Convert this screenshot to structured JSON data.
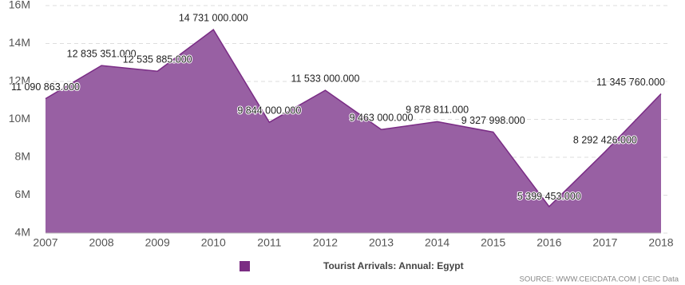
{
  "chart_data": {
    "type": "area",
    "categories": [
      "2007",
      "2008",
      "2009",
      "2010",
      "2011",
      "2012",
      "2013",
      "2014",
      "2015",
      "2016",
      "2017",
      "2018"
    ],
    "series": [
      {
        "name": "Tourist Arrivals: Annual: Egypt",
        "color": "#9860a3",
        "line_color": "#7a2c85",
        "legend_color": "#7b2d83",
        "values": [
          11090863,
          12835351,
          12535885,
          14731000,
          9844000,
          11533000,
          9463000,
          9878811,
          9327998,
          5399453,
          8292426,
          11345760
        ],
        "value_labels": [
          "11 090 863.000",
          "12 835 351.000",
          "12 535 885.000",
          "14 731 000.000",
          "9 844 000.000",
          "11 533 000.000",
          "9 463 000.000",
          "9 878 811.000",
          "9 327 998.000",
          "5 399 453.000",
          "8 292 426.000",
          "11 345 760.000"
        ]
      }
    ],
    "ylim": [
      4000000,
      16000000
    ],
    "yticks": [
      {
        "value": 4000000,
        "label": "4M"
      },
      {
        "value": 6000000,
        "label": "6M"
      },
      {
        "value": 8000000,
        "label": "8M"
      },
      {
        "value": 10000000,
        "label": "10M"
      },
      {
        "value": 12000000,
        "label": "12M"
      },
      {
        "value": 14000000,
        "label": "14M"
      },
      {
        "value": 16000000,
        "label": "16M"
      }
    ],
    "grid": true,
    "legend": "bottom",
    "source": "SOURCE: WWW.CEICDATA.COM | CEIC Data"
  }
}
